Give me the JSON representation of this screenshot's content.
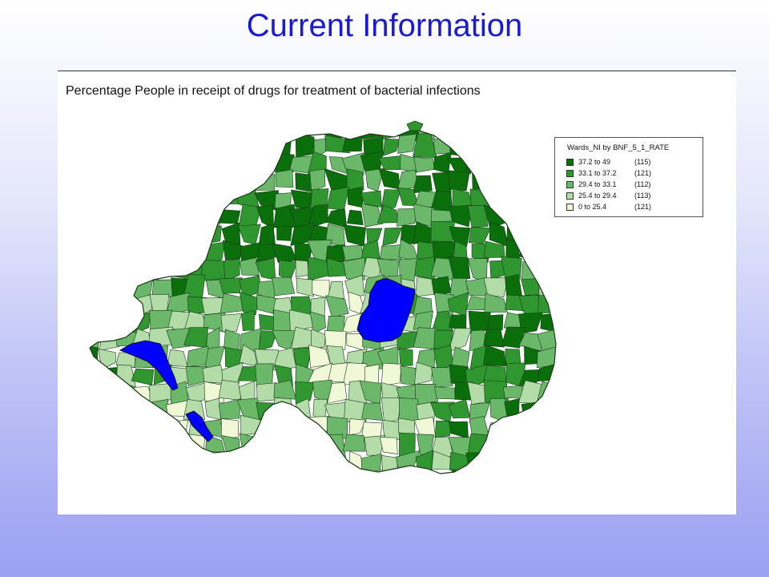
{
  "slide": {
    "title": "Current Information"
  },
  "map": {
    "heading": "Percentage People in receipt of drugs for treatment of bacterial infections",
    "water_color": "#0000ff",
    "legend": {
      "title": "Wards_NI by BNF_5_1_RATE",
      "classes": [
        {
          "range": "37.2 to 49",
          "count": "(115)",
          "color": "#0a6e0a"
        },
        {
          "range": "33.1 to 37.2",
          "count": "(121)",
          "color": "#2f9630"
        },
        {
          "range": "29.4 to 33.1",
          "count": "(112)",
          "color": "#6bb86b"
        },
        {
          "range": "25.4 to 29.4",
          "count": "(113)",
          "color": "#b3dca8"
        },
        {
          "range": "0    to 25.4",
          "count": "(121)",
          "color": "#f0f8d8"
        }
      ]
    }
  }
}
